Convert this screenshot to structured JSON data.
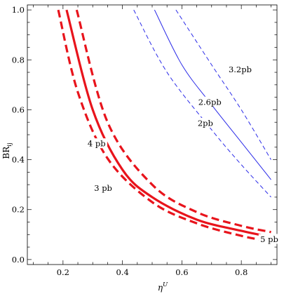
{
  "chart_data": {
    "type": "line",
    "xlabel": "η",
    "xlabel_sup": "U",
    "ylabel": "BR",
    "ylabel_sub": "ij",
    "xlim": [
      0.08,
      0.92
    ],
    "ylim": [
      -0.02,
      1.02
    ],
    "x_ticks": [
      0.2,
      0.4,
      0.6,
      0.8
    ],
    "x_tick_labels": [
      "0.2",
      "0.4",
      "0.6",
      "0.8"
    ],
    "y_ticks": [
      0.0,
      0.2,
      0.4,
      0.6,
      0.8,
      1.0
    ],
    "y_tick_labels": [
      "0.0",
      "0.2",
      "0.4",
      "0.6",
      "0.8",
      "1.0"
    ],
    "grid": false,
    "series": [
      {
        "color": "#e8141c",
        "style": "dashed",
        "width": "thick",
        "points": [
          [
            0.184,
            1.0
          ],
          [
            0.25,
            0.67
          ],
          [
            0.35,
            0.405
          ],
          [
            0.5,
            0.23
          ],
          [
            0.65,
            0.145
          ],
          [
            0.8,
            0.095
          ],
          [
            0.9,
            0.072
          ]
        ]
      },
      {
        "color": "#e8141c",
        "style": "solid",
        "width": "thick",
        "points": [
          [
            0.212,
            1.0
          ],
          [
            0.3,
            0.6
          ],
          [
            0.4,
            0.36
          ],
          [
            0.5,
            0.25
          ],
          [
            0.65,
            0.16
          ],
          [
            0.8,
            0.115
          ],
          [
            0.9,
            0.09
          ]
        ]
      },
      {
        "color": "#e8141c",
        "style": "dashed",
        "width": "thick",
        "points": [
          [
            0.246,
            1.0
          ],
          [
            0.35,
            0.55
          ],
          [
            0.5,
            0.3
          ],
          [
            0.65,
            0.19
          ],
          [
            0.8,
            0.135
          ],
          [
            0.9,
            0.11
          ]
        ]
      },
      {
        "color": "#2b2be8",
        "style": "dashed",
        "width": "thin",
        "points": [
          [
            0.438,
            1.0
          ],
          [
            0.55,
            0.75
          ],
          [
            0.7,
            0.52
          ],
          [
            0.8,
            0.38
          ],
          [
            0.9,
            0.25
          ]
        ]
      },
      {
        "color": "#2b2be8",
        "style": "solid",
        "width": "thin",
        "points": [
          [
            0.508,
            1.0
          ],
          [
            0.6,
            0.78
          ],
          [
            0.7,
            0.62
          ],
          [
            0.8,
            0.47
          ],
          [
            0.9,
            0.32
          ]
        ]
      },
      {
        "color": "#2b2be8",
        "style": "dashed",
        "width": "thin",
        "points": [
          [
            0.58,
            1.0
          ],
          [
            0.7,
            0.78
          ],
          [
            0.8,
            0.6
          ],
          [
            0.9,
            0.4
          ]
        ]
      }
    ],
    "annotations": [
      {
        "text": "4 pb",
        "x": 0.313,
        "y": 0.463
      },
      {
        "text": "3 pb",
        "x": 0.335,
        "y": 0.285
      },
      {
        "text": "5 pb",
        "x": 0.894,
        "y": 0.08
      },
      {
        "text": "3.2pb",
        "x": 0.796,
        "y": 0.76
      },
      {
        "text": "2.6pb",
        "x": 0.694,
        "y": 0.63
      },
      {
        "text": "2pb",
        "x": 0.679,
        "y": 0.545
      }
    ]
  }
}
